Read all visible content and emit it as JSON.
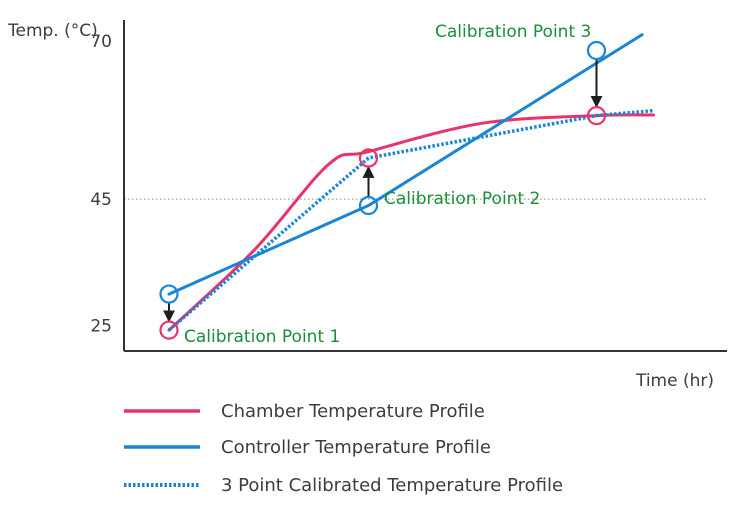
{
  "chart_data": {
    "type": "line",
    "title": "",
    "ylabel": "Temp. (°C)",
    "xlabel": "Time (hr)",
    "yticks": [
      25,
      45,
      70
    ],
    "ylim": [
      21,
      73
    ],
    "xlim": [
      0,
      10
    ],
    "reference_line": {
      "y": 45,
      "style": "dotted"
    },
    "series": [
      {
        "name": "Chamber Temperature Profile",
        "color": "#e8336d",
        "style": "solid",
        "x": [
          1,
          2.5,
          3.8,
          4.5,
          6.5,
          8.5,
          9.5
        ],
        "y": [
          24.3,
          37,
          50.5,
          52.5,
          57,
          58.2,
          58.3
        ]
      },
      {
        "name": "Controller Temperature Profile",
        "color": "#1a85d6",
        "style": "solid",
        "x": [
          1,
          4.5,
          9.3
        ],
        "y": [
          30,
          44,
          71
        ]
      },
      {
        "name": "3 Point Calibrated Temperature Profile",
        "color": "#1a85d6",
        "style": "dotted",
        "x": [
          1,
          4.5,
          8.5,
          9.5
        ],
        "y": [
          24.3,
          51.5,
          58.2,
          59
        ]
      }
    ],
    "calibration_points": [
      {
        "label": "Calibration Point 1",
        "x": 1,
        "controller_y": 30,
        "chamber_y": 24.3
      },
      {
        "label": "Calibration Point 2",
        "x": 4.5,
        "controller_y": 44,
        "chamber_y": 51.5
      },
      {
        "label": "Calibration Point 3",
        "x": 8.5,
        "controller_y": 68.5,
        "chamber_y": 58.2
      }
    ],
    "grid": false,
    "legend_position": "bottom-left"
  }
}
